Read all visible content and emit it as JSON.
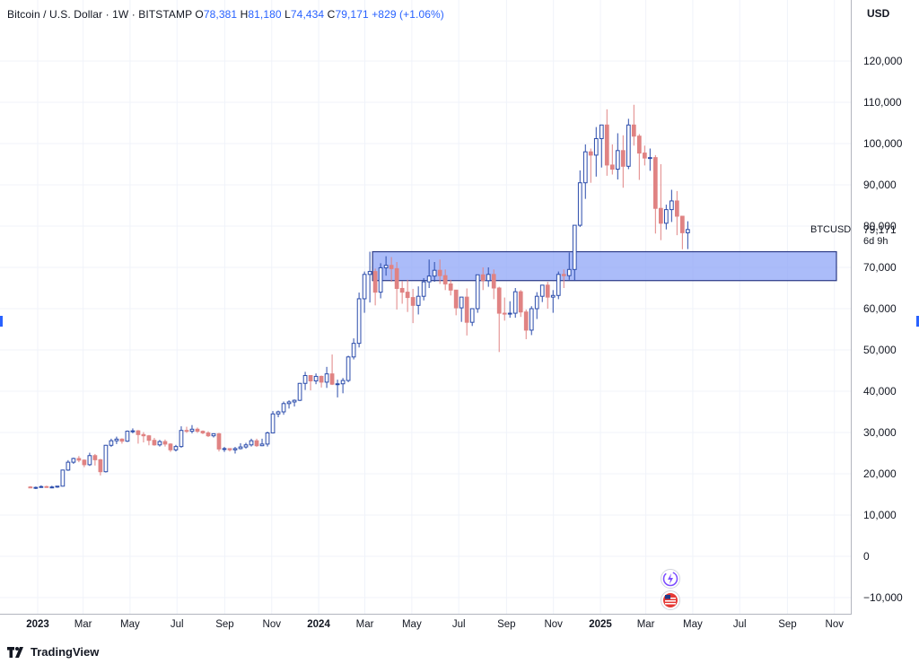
{
  "header": {
    "title": "Bitcoin / U.S. Dollar · 1W · BITSTAMP",
    "o_label": "O",
    "o_value": "78,381",
    "h_label": "H",
    "h_value": "81,180",
    "l_label": "L",
    "l_value": "74,434",
    "c_label": "C",
    "c_value": "79,171",
    "change": "+829 (+1.06%)"
  },
  "currency": "USD",
  "symbol_label": "BTCUSD",
  "last_price": "79,171",
  "countdown": "6d 9h",
  "branding": "TradingView",
  "colors": {
    "up": "#2a4bab",
    "down": "#e08383",
    "zone_fill": "#8fa5f7",
    "zone_border": "#2c3b86",
    "grid": "#f0f3fa"
  },
  "chart_data": {
    "type": "candlestick",
    "interval": "1W",
    "y_ticks": [
      "120,000",
      "110,000",
      "100,000",
      "90,000",
      "80,000",
      "70,000",
      "60,000",
      "50,000",
      "40,000",
      "30,000",
      "20,000",
      "10,000",
      "0",
      "−10,000"
    ],
    "y_tick_values": [
      120000,
      110000,
      100000,
      90000,
      80000,
      70000,
      60000,
      50000,
      40000,
      30000,
      20000,
      10000,
      0,
      -10000
    ],
    "x_ticks": [
      {
        "label": "2023",
        "date": "2023-01-01",
        "bold": true
      },
      {
        "label": "Mar",
        "date": "2023-03-01"
      },
      {
        "label": "May",
        "date": "2023-05-01"
      },
      {
        "label": "Jul",
        "date": "2023-07-01"
      },
      {
        "label": "Sep",
        "date": "2023-09-01"
      },
      {
        "label": "Nov",
        "date": "2023-11-01"
      },
      {
        "label": "2024",
        "date": "2024-01-01",
        "bold": true
      },
      {
        "label": "Mar",
        "date": "2024-03-01"
      },
      {
        "label": "May",
        "date": "2024-05-01"
      },
      {
        "label": "Jul",
        "date": "2024-07-01"
      },
      {
        "label": "Sep",
        "date": "2024-09-01"
      },
      {
        "label": "Nov",
        "date": "2024-11-01"
      },
      {
        "label": "2025",
        "date": "2025-01-01",
        "bold": true
      },
      {
        "label": "Mar",
        "date": "2025-03-01"
      },
      {
        "label": "May",
        "date": "2025-05-01"
      },
      {
        "label": "Jul",
        "date": "2025-07-01"
      },
      {
        "label": "Sep",
        "date": "2025-09-01"
      },
      {
        "label": "Nov",
        "date": "2025-11-01"
      }
    ],
    "first_candle": "2022-12-19",
    "candles_ohlc": [
      [
        16800,
        17000,
        16500,
        16600
      ],
      [
        16600,
        16900,
        16300,
        16700
      ],
      [
        16700,
        17200,
        16600,
        16900
      ],
      [
        16900,
        17100,
        16600,
        16700
      ],
      [
        16700,
        17100,
        16500,
        16800
      ],
      [
        16800,
        17000,
        16600,
        17000
      ],
      [
        17000,
        21000,
        16900,
        20900
      ],
      [
        20900,
        23300,
        20700,
        22800
      ],
      [
        22800,
        23900,
        22400,
        23700
      ],
      [
        23700,
        24300,
        22800,
        23300
      ],
      [
        23300,
        23500,
        21600,
        22200
      ],
      [
        22200,
        25100,
        21900,
        24400
      ],
      [
        24400,
        24800,
        22000,
        23400
      ],
      [
        23400,
        23600,
        19600,
        20500
      ],
      [
        20500,
        27000,
        20300,
        26900
      ],
      [
        26900,
        28500,
        26500,
        28000
      ],
      [
        28000,
        29000,
        27200,
        28400
      ],
      [
        28400,
        28600,
        27300,
        27900
      ],
      [
        27900,
        30500,
        27700,
        30300
      ],
      [
        30300,
        31000,
        29800,
        30400
      ],
      [
        30400,
        30600,
        27300,
        29500
      ],
      [
        29500,
        30100,
        27600,
        29200
      ],
      [
        29200,
        29400,
        26900,
        28100
      ],
      [
        28100,
        28700,
        26800,
        27000
      ],
      [
        27000,
        28200,
        26600,
        27800
      ],
      [
        27800,
        28300,
        26600,
        27200
      ],
      [
        27200,
        27400,
        25300,
        25800
      ],
      [
        25800,
        27000,
        25400,
        26600
      ],
      [
        26600,
        31500,
        26300,
        30500
      ],
      [
        30500,
        31400,
        29900,
        30300
      ],
      [
        30300,
        31800,
        29800,
        30800
      ],
      [
        30800,
        31200,
        29900,
        30300
      ],
      [
        30300,
        30500,
        29600,
        29900
      ],
      [
        29900,
        30300,
        28900,
        29200
      ],
      [
        29200,
        29800,
        28800,
        29700
      ],
      [
        29700,
        29900,
        25400,
        26000
      ],
      [
        26000,
        26500,
        25300,
        26100
      ],
      [
        26100,
        26200,
        25400,
        25800
      ],
      [
        25800,
        26500,
        24900,
        26100
      ],
      [
        26100,
        27400,
        25900,
        26500
      ],
      [
        26500,
        27500,
        26100,
        27000
      ],
      [
        27000,
        28500,
        26600,
        28000
      ],
      [
        28000,
        28500,
        26500,
        26800
      ],
      [
        26800,
        28500,
        26700,
        27200
      ],
      [
        27200,
        30200,
        26600,
        29900
      ],
      [
        29900,
        35200,
        29800,
        34500
      ],
      [
        34500,
        35300,
        33700,
        35000
      ],
      [
        35000,
        37500,
        34300,
        37000
      ],
      [
        37000,
        37800,
        35800,
        37400
      ],
      [
        37400,
        38000,
        36300,
        37800
      ],
      [
        37800,
        42000,
        37600,
        41900
      ],
      [
        41900,
        44700,
        40300,
        43800
      ],
      [
        43800,
        43500,
        40200,
        42500
      ],
      [
        42500,
        44300,
        41700,
        43600
      ],
      [
        43600,
        43800,
        40900,
        42200
      ],
      [
        42200,
        45900,
        40800,
        44200
      ],
      [
        44200,
        48900,
        41500,
        41700
      ],
      [
        41700,
        42800,
        38500,
        41800
      ],
      [
        41800,
        43200,
        39500,
        42600
      ],
      [
        42600,
        48600,
        42200,
        48300
      ],
      [
        48300,
        52800,
        47700,
        51600
      ],
      [
        51600,
        63900,
        50600,
        62400
      ],
      [
        62400,
        69000,
        59000,
        68300
      ],
      [
        68300,
        73800,
        61500,
        69000
      ],
      [
        69000,
        69700,
        60800,
        64000
      ],
      [
        64000,
        71000,
        62500,
        69900
      ],
      [
        69900,
        72700,
        68000,
        70500
      ],
      [
        70500,
        72500,
        66500,
        69700
      ],
      [
        69700,
        71300,
        59800,
        64900
      ],
      [
        64900,
        66700,
        61200,
        64000
      ],
      [
        64000,
        67000,
        59200,
        62700
      ],
      [
        62700,
        64800,
        56500,
        60800
      ],
      [
        60800,
        65400,
        58600,
        63000
      ],
      [
        63000,
        67400,
        62000,
        66500
      ],
      [
        66500,
        71900,
        65000,
        67900
      ],
      [
        67900,
        71300,
        66500,
        69300
      ],
      [
        69300,
        71900,
        66000,
        68000
      ],
      [
        68000,
        69500,
        64500,
        66000
      ],
      [
        66000,
        67000,
        63200,
        64500
      ],
      [
        64500,
        64500,
        58400,
        60200
      ],
      [
        60200,
        62800,
        56800,
        62800
      ],
      [
        62800,
        64900,
        53500,
        56700
      ],
      [
        56700,
        60000,
        55800,
        60000
      ],
      [
        60000,
        68000,
        59000,
        68200
      ],
      [
        68200,
        70000,
        64500,
        66800
      ],
      [
        66800,
        70000,
        65300,
        68300
      ],
      [
        68300,
        69500,
        62300,
        65000
      ],
      [
        65000,
        65300,
        49500,
        58900
      ],
      [
        58900,
        62700,
        57100,
        58700
      ],
      [
        58700,
        61800,
        57800,
        58900
      ],
      [
        58900,
        65000,
        57800,
        64100
      ],
      [
        64100,
        64500,
        58000,
        59200
      ],
      [
        59200,
        59800,
        52600,
        54800
      ],
      [
        54800,
        60600,
        53600,
        60000
      ],
      [
        60000,
        64000,
        57500,
        63000
      ],
      [
        63000,
        64600,
        61600,
        65700
      ],
      [
        65700,
        66500,
        60000,
        62800
      ],
      [
        62800,
        64500,
        59000,
        63200
      ],
      [
        63200,
        69000,
        62300,
        68300
      ],
      [
        68300,
        69500,
        65000,
        68000
      ],
      [
        68000,
        73600,
        67000,
        69500
      ],
      [
        69500,
        80200,
        66800,
        80200
      ],
      [
        80200,
        93500,
        79800,
        90500
      ],
      [
        90500,
        99800,
        86600,
        98000
      ],
      [
        98000,
        98800,
        90500,
        97200
      ],
      [
        97200,
        104000,
        92000,
        101200
      ],
      [
        101200,
        104500,
        94200,
        104500
      ],
      [
        104500,
        108300,
        92200,
        94800
      ],
      [
        94800,
        99800,
        92500,
        93800
      ],
      [
        93800,
        102500,
        91300,
        98300
      ],
      [
        98300,
        102000,
        89300,
        94500
      ],
      [
        94500,
        106000,
        93800,
        104500
      ],
      [
        104500,
        109400,
        99500,
        101800
      ],
      [
        101800,
        102300,
        91200,
        97700
      ],
      [
        97700,
        99500,
        94700,
        96500
      ],
      [
        96500,
        98800,
        93400,
        96600
      ],
      [
        96600,
        97200,
        78200,
        84300
      ],
      [
        84300,
        95000,
        76600,
        80700
      ],
      [
        80700,
        85200,
        79200,
        84000
      ],
      [
        84000,
        88800,
        81000,
        86100
      ],
      [
        86100,
        88500,
        77800,
        82400
      ],
      [
        82400,
        81200,
        74400,
        78400
      ],
      [
        78381,
        81180,
        74434,
        79171
      ]
    ],
    "zone": {
      "top": 73800,
      "bottom": 66800,
      "start": "2024-03-11",
      "end": "right-edge"
    }
  }
}
